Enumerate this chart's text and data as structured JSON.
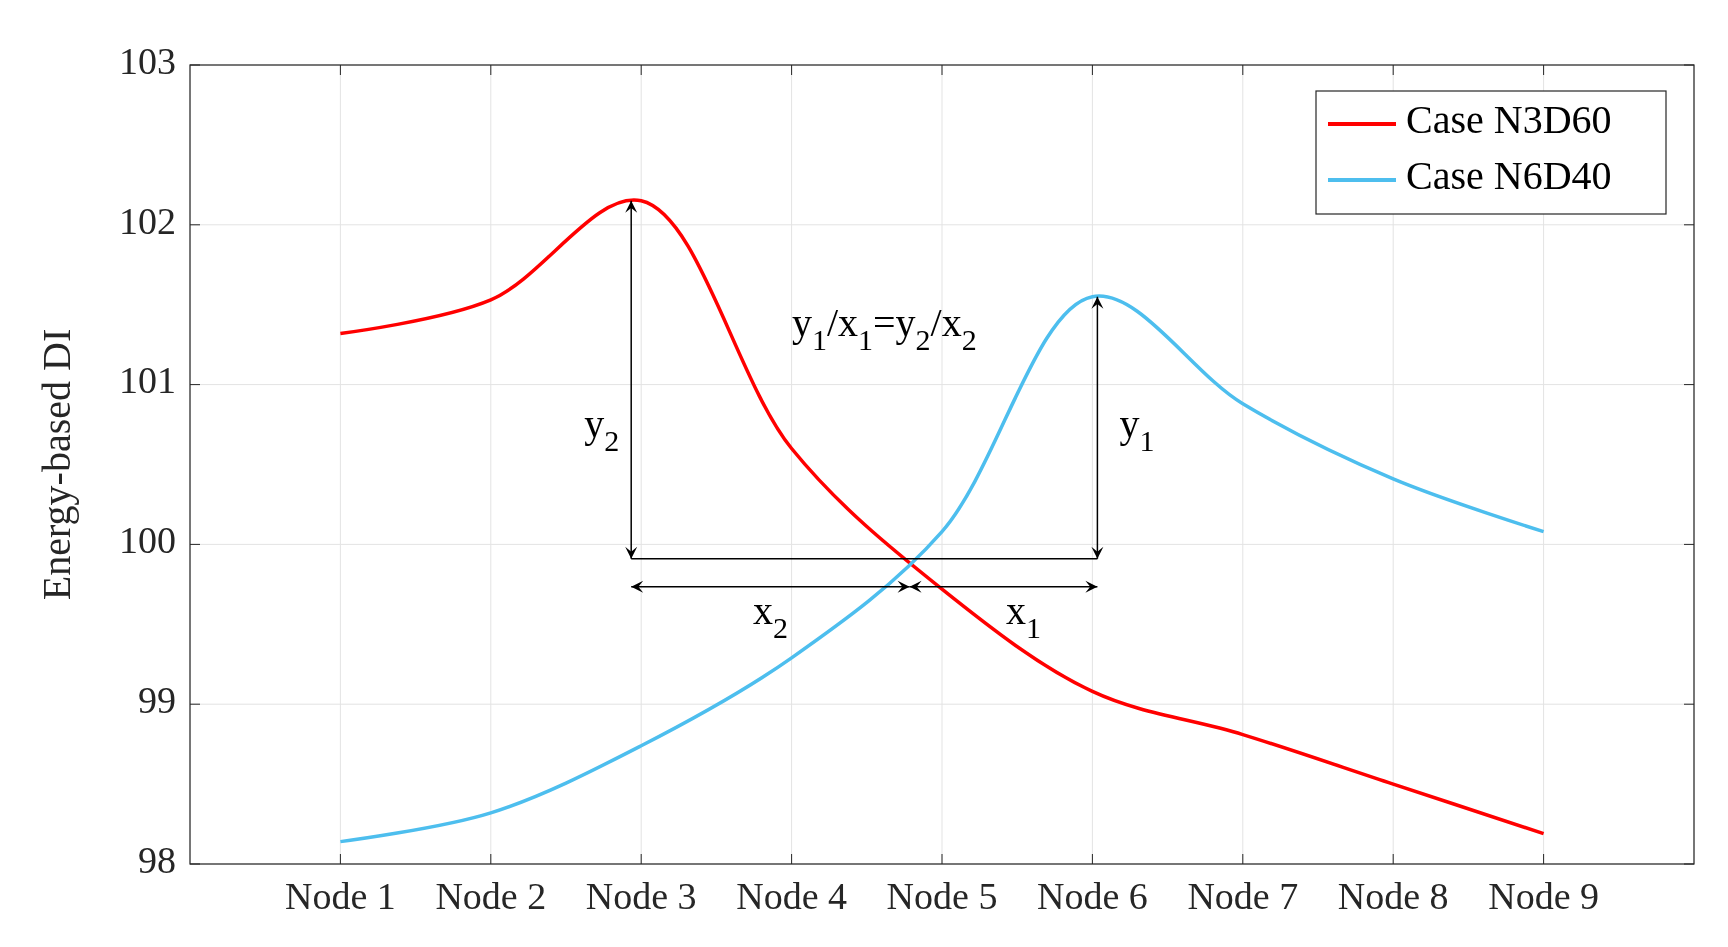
{
  "chart_data": {
    "type": "line",
    "ylabel": "Energy-based DI",
    "categories": [
      "Node 1",
      "Node 2",
      "Node 3",
      "Node 4",
      "Node 5",
      "Node 6",
      "Node 7",
      "Node 8",
      "Node 9"
    ],
    "ylim": [
      98,
      103
    ],
    "yticks": [
      98,
      99,
      100,
      101,
      102,
      103
    ],
    "grid": true,
    "legend": "top right",
    "series": [
      {
        "name": "Case N3D60",
        "color": "#ff0000",
        "values": [
          101.32,
          101.53,
          102.15,
          100.6,
          99.72,
          99.08,
          98.81,
          98.5,
          98.19
        ]
      },
      {
        "name": "Case N6D40",
        "color": "#4dbeee",
        "values": [
          98.14,
          98.32,
          98.74,
          99.29,
          100.08,
          101.55,
          100.88,
          100.41,
          100.08
        ]
      }
    ],
    "annotations": [
      "y$_{1}$/x$_{1}$=y$_{2}$/x$_{2}$",
      "y$_{2}$",
      "y$_{1}$",
      "x$_{2}$",
      "x$_{1}$"
    ]
  }
}
